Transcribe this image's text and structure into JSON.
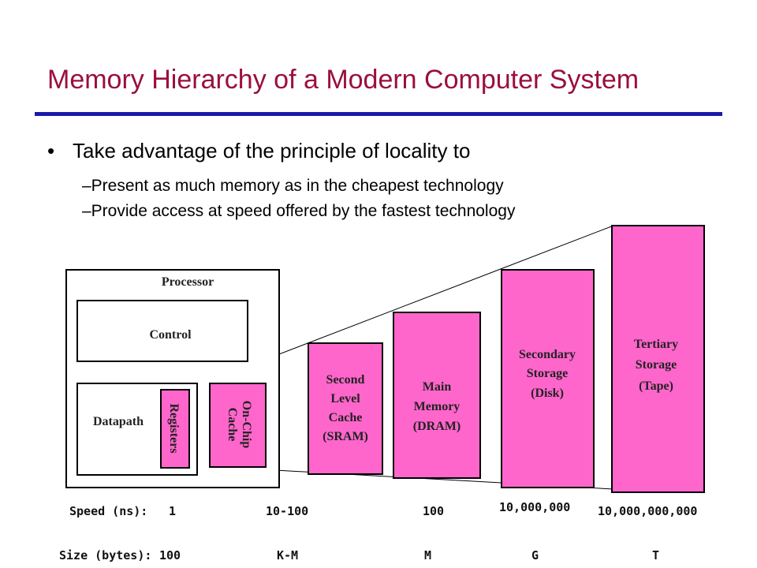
{
  "slide": {
    "title": "Memory Hierarchy of a Modern Computer System",
    "bullet_symbol": "•",
    "bullet": "Take advantage of the principle of locality to",
    "subbullets": [
      "–Present as much memory as in the cheapest technology",
      "–Provide access at speed offered by the fastest technology"
    ]
  },
  "diagram": {
    "processor_label": "Processor",
    "control_label": "Control",
    "datapath_label": "Datapath",
    "registers_label": "Registers",
    "onchip_line1": "On-Chip",
    "onchip_line2": "Cache",
    "sram_lines": [
      "Second",
      "Level",
      "Cache",
      "(SRAM)"
    ],
    "dram_lines": [
      "Main",
      "Memory",
      "(DRAM)"
    ],
    "disk_lines": [
      "Secondary",
      "Storage",
      "(Disk)"
    ],
    "tape_lines": [
      "Tertiary",
      "Storage",
      "(Tape)"
    ],
    "fill_color": "#ff66cc"
  },
  "speed": {
    "label": "Speed (ns):",
    "values": [
      "1",
      "10-100",
      "100",
      "10,000,000",
      "10,000,000,000"
    ]
  },
  "size": {
    "label": "Size (bytes):",
    "values": [
      "100",
      "K-M",
      "M",
      "G",
      "T"
    ]
  }
}
